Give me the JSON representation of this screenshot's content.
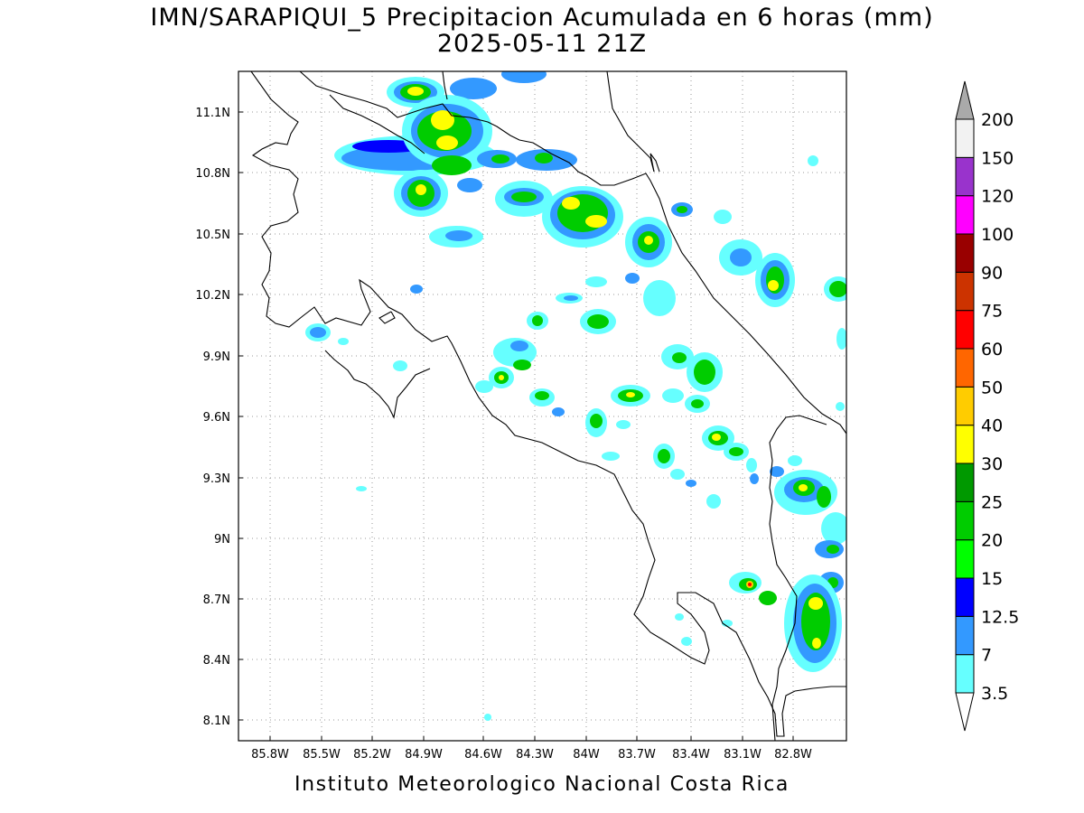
{
  "title_line1": "IMN/SARAPIQUI_5 Precipitacion Acumulada en 6 horas (mm)",
  "title_line2": "2025-05-11 21Z",
  "footer": "Instituto Meteorologico Nacional Costa Rica",
  "map": {
    "lon_range": [
      -86.0,
      -82.6
    ],
    "lat_range": [
      8.0,
      11.2
    ],
    "lon_ticks": [
      "85.8W",
      "85.5W",
      "85.2W",
      "84.9W",
      "84.6W",
      "84.3W",
      "84W",
      "83.7W",
      "83.4W",
      "83.1W",
      "82.8W"
    ],
    "lat_ticks": [
      "8.1N",
      "8.4N",
      "8.7N",
      "9N",
      "9.3N",
      "9.6N",
      "9.9N",
      "10.2N",
      "10.5N",
      "10.8N",
      "11.1N"
    ],
    "grid": true
  },
  "colorbar": {
    "levels": [
      "3.5",
      "7",
      "12.5",
      "15",
      "20",
      "25",
      "30",
      "40",
      "50",
      "60",
      "75",
      "90",
      "100",
      "120",
      "150",
      "200"
    ],
    "colors": [
      "#66ffff",
      "#3399ff",
      "#0000ff",
      "#00ff00",
      "#00cc00",
      "#009900",
      "#ffff00",
      "#ffcc00",
      "#ff6600",
      "#ff0000",
      "#cc3300",
      "#990000",
      "#ff00ff",
      "#9933cc",
      "#f2f2f2"
    ],
    "overflow_color": "#aaaaaa",
    "underflow_color": "#ffffff"
  }
}
